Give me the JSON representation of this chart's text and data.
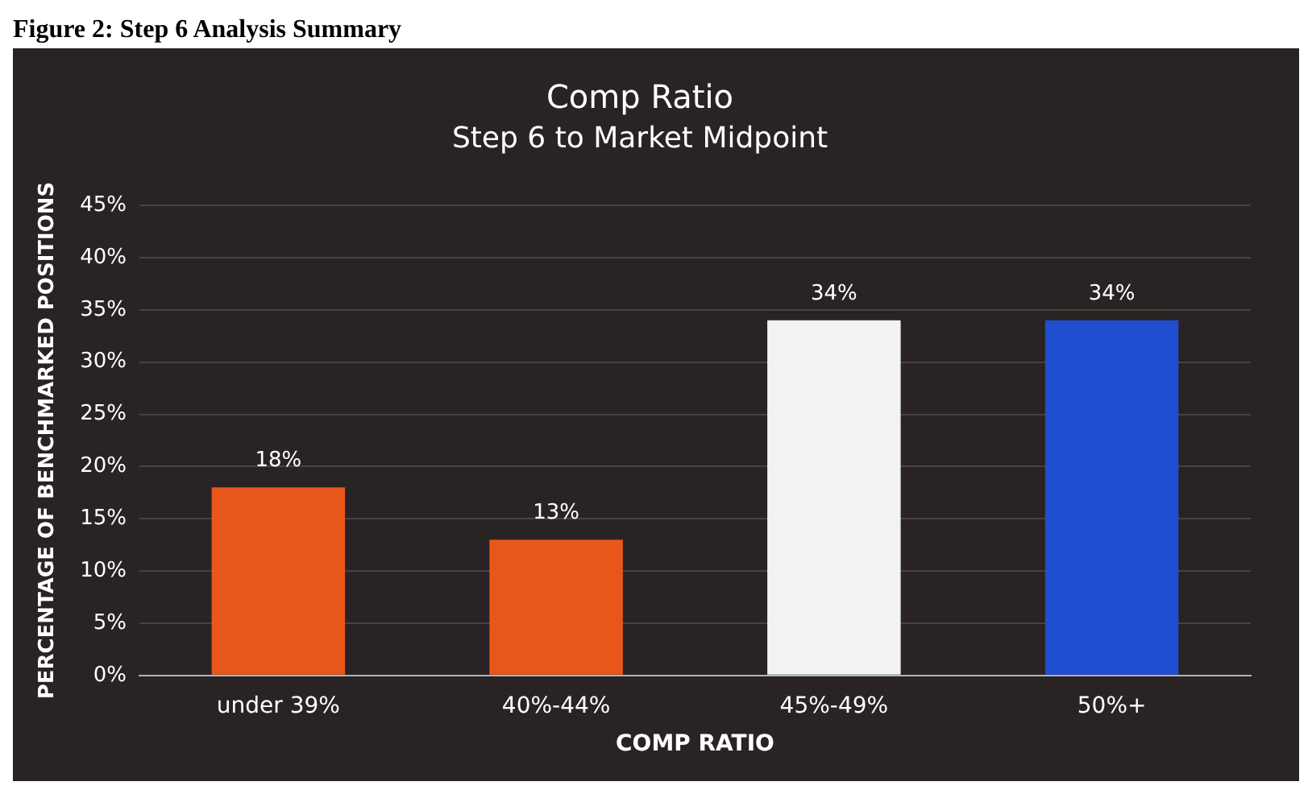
{
  "chart_data": {
    "type": "bar",
    "title": "Comp Ratio",
    "subtitle": "Step 6 to Market Midpoint",
    "xlabel": "COMP RATIO",
    "ylabel": "PERCENTAGE OF BENCHMARKED POSITIONS",
    "annotations": [
      "Figure 2: Step 6 Analysis Summary"
    ],
    "categories": [
      "under 39%",
      "40%-44%",
      "45%-49%",
      "50%+"
    ],
    "values": [
      18,
      13,
      34,
      34
    ],
    "colors": [
      "#e8571a",
      "#e8571a",
      "#f2f2f2",
      "#1f4fd0"
    ],
    "value_labels": [
      "18%",
      "13%",
      "34%",
      "34%"
    ],
    "ylim": [
      0,
      45
    ],
    "yticks": [
      {
        "value": 0,
        "label": "0%"
      },
      {
        "value": 5,
        "label": "5%"
      },
      {
        "value": 10,
        "label": "10%"
      },
      {
        "value": 15,
        "label": "15%"
      },
      {
        "value": 20,
        "label": "20%"
      },
      {
        "value": 25,
        "label": "25%"
      },
      {
        "value": 30,
        "label": "30%"
      },
      {
        "value": 35,
        "label": "35%"
      },
      {
        "value": 40,
        "label": "40%"
      },
      {
        "value": 45,
        "label": "45%"
      }
    ],
    "grid": "y",
    "legend": false
  }
}
